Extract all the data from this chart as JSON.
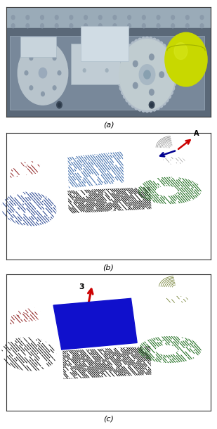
{
  "fig_width": 3.09,
  "fig_height": 6.1,
  "dpi": 100,
  "label_a": "(a)",
  "label_b": "(b)",
  "label_c": "(c)",
  "label_fontsize": 8,
  "bg_color": "#ffffff",
  "panel_b": {
    "dark_red_color": "#8B1A1A",
    "blue_color": "#1a3a8a",
    "steel_blue_color": "#3a6aaa",
    "black_color": "#111111",
    "green_color": "#1a6a1a",
    "arrow_red": "#cc0000",
    "arrow_blue": "#000090"
  },
  "panel_c": {
    "dark_red_color": "#8B1A1A",
    "black_color": "#111111",
    "green_color": "#1a6a1a",
    "blue_panel_color": "#1010cc",
    "arrow_red": "#cc0000",
    "olive_color": "#5a6a10",
    "white_line": "#ffffff"
  }
}
